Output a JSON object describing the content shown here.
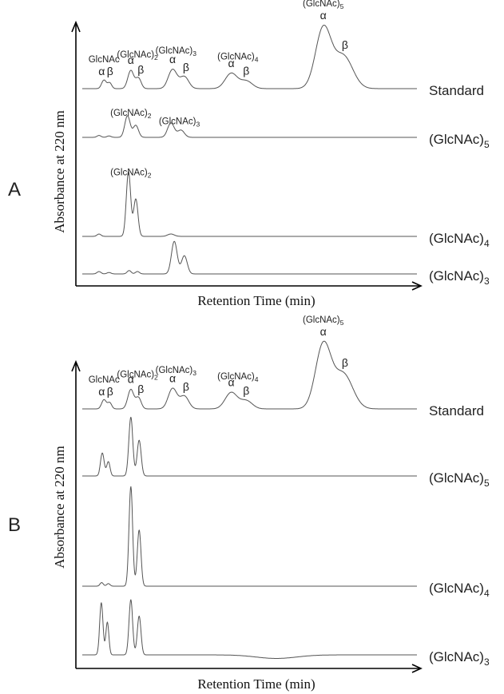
{
  "chart_data": [
    {
      "type": "line",
      "panel_label": "A",
      "xlabel": "Retention Time (min)",
      "ylabel": "Absorbance at 220 nm",
      "x_range": [
        0,
        100
      ],
      "series": [
        {
          "name": "Standard",
          "baseline_offset": 3.0,
          "peaks": [
            {
              "x": 6.5,
              "height": 0.18,
              "width": 0.7
            },
            {
              "x": 8.2,
              "height": 0.12,
              "width": 0.6
            },
            {
              "x": 14.5,
              "height": 0.38,
              "width": 0.9
            },
            {
              "x": 16.8,
              "height": 0.22,
              "width": 0.8
            },
            {
              "x": 27.0,
              "height": 0.4,
              "width": 1.3
            },
            {
              "x": 30.5,
              "height": 0.25,
              "width": 1.3
            },
            {
              "x": 44.5,
              "height": 0.32,
              "width": 1.8
            },
            {
              "x": 49.0,
              "height": 0.16,
              "width": 1.8
            },
            {
              "x": 72.0,
              "height": 1.25,
              "width": 2.3
            },
            {
              "x": 78.0,
              "height": 0.68,
              "width": 2.8
            }
          ]
        },
        {
          "name": "(GlcNAc)5",
          "baseline_offset": 2.05,
          "peaks": [
            {
              "x": 5.0,
              "height": 0.04,
              "width": 0.6
            },
            {
              "x": 8.0,
              "height": 0.03,
              "width": 0.6
            },
            {
              "x": 13.5,
              "height": 0.45,
              "width": 0.8
            },
            {
              "x": 16.0,
              "height": 0.25,
              "width": 0.8
            },
            {
              "x": 26.5,
              "height": 0.3,
              "width": 1.0
            },
            {
              "x": 29.5,
              "height": 0.15,
              "width": 1.0
            }
          ]
        },
        {
          "name": "(GlcNAc)4",
          "baseline_offset": 0.95,
          "peaks": [
            {
              "x": 5.0,
              "height": 0.05,
              "width": 0.6
            },
            {
              "x": 13.8,
              "height": 1.35,
              "width": 0.65
            },
            {
              "x": 16.0,
              "height": 0.78,
              "width": 0.65
            },
            {
              "x": 26.5,
              "height": 0.05,
              "width": 1.0
            }
          ]
        },
        {
          "name": "(GlcNAc)3",
          "baseline_offset": 0.18,
          "peaks": [
            {
              "x": 5.0,
              "height": 0.05,
              "width": 0.6
            },
            {
              "x": 8.0,
              "height": 0.03,
              "width": 0.6
            },
            {
              "x": 14.0,
              "height": 0.07,
              "width": 0.6
            },
            {
              "x": 16.5,
              "height": 0.05,
              "width": 0.6
            },
            {
              "x": 27.5,
              "height": 0.68,
              "width": 0.85
            },
            {
              "x": 30.5,
              "height": 0.38,
              "width": 0.85
            }
          ]
        }
      ],
      "annotations": [
        {
          "text": "GlcNAc",
          "sub": "",
          "series": "Standard",
          "x": 6.5,
          "row": 2
        },
        {
          "text": "α",
          "sub": "",
          "series": "Standard",
          "x": 5.8,
          "row": 1
        },
        {
          "text": "β",
          "sub": "",
          "series": "Standard",
          "x": 8.3,
          "row": 1
        },
        {
          "text": "(GlcNAc)",
          "sub": "2",
          "series": "Standard",
          "x": 16.5,
          "row": 2
        },
        {
          "text": "α",
          "sub": "",
          "series": "Standard",
          "x": 14.5,
          "row": 1
        },
        {
          "text": "β",
          "sub": "",
          "series": "Standard",
          "x": 17.5,
          "row": 0
        },
        {
          "text": "(GlcNAc)",
          "sub": "3",
          "series": "Standard",
          "x": 28.0,
          "row": 2
        },
        {
          "text": "α",
          "sub": "",
          "series": "Standard",
          "x": 27.0,
          "row": 1
        },
        {
          "text": "β",
          "sub": "",
          "series": "Standard",
          "x": 31.0,
          "row": 0
        },
        {
          "text": "(GlcNAc)",
          "sub": "4",
          "series": "Standard",
          "x": 46.5,
          "row": 2
        },
        {
          "text": "α",
          "sub": "",
          "series": "Standard",
          "x": 44.5,
          "row": 1
        },
        {
          "text": "β",
          "sub": "",
          "series": "Standard",
          "x": 49.0,
          "row": 0
        },
        {
          "text": "(GlcNAc)",
          "sub": "5",
          "series": "Standard",
          "x": 72.0,
          "row": 4
        },
        {
          "text": "α",
          "sub": "",
          "series": "Standard",
          "x": 72.0,
          "row": 3
        },
        {
          "text": "β",
          "sub": "",
          "series": "Standard",
          "x": 78.5,
          "row": 2
        },
        {
          "text": "(GlcNAc)",
          "sub": "2",
          "series": "(GlcNAc)5",
          "x": 14.5,
          "row": 1
        },
        {
          "text": "(GlcNAc)",
          "sub": "3",
          "series": "(GlcNAc)5",
          "x": 29.0,
          "row": 0
        },
        {
          "text": "(GlcNAc)",
          "sub": "2",
          "series": "(GlcNAc)4",
          "x": 14.5,
          "row": 3
        }
      ]
    },
    {
      "type": "line",
      "panel_label": "B",
      "xlabel": "Retention Time (min)",
      "ylabel": "Absorbance at 220 nm",
      "x_range": [
        0,
        100
      ],
      "series": [
        {
          "name": "Standard",
          "baseline_offset": 3.0,
          "peaks": [
            {
              "x": 6.5,
              "height": 0.18,
              "width": 0.7
            },
            {
              "x": 8.2,
              "height": 0.12,
              "width": 0.6
            },
            {
              "x": 14.5,
              "height": 0.38,
              "width": 0.9
            },
            {
              "x": 16.8,
              "height": 0.22,
              "width": 0.8
            },
            {
              "x": 27.0,
              "height": 0.4,
              "width": 1.3
            },
            {
              "x": 30.5,
              "height": 0.25,
              "width": 1.3
            },
            {
              "x": 44.5,
              "height": 0.32,
              "width": 1.8
            },
            {
              "x": 49.0,
              "height": 0.16,
              "width": 1.8
            },
            {
              "x": 72.0,
              "height": 1.25,
              "width": 2.3
            },
            {
              "x": 78.0,
              "height": 0.68,
              "width": 2.8
            }
          ]
        },
        {
          "name": "(GlcNAc)5",
          "baseline_offset": 2.05,
          "peaks": [
            {
              "x": 6.0,
              "height": 0.45,
              "width": 0.55
            },
            {
              "x": 7.8,
              "height": 0.28,
              "width": 0.5
            },
            {
              "x": 14.5,
              "height": 1.15,
              "width": 0.6
            },
            {
              "x": 17.0,
              "height": 0.7,
              "width": 0.6
            }
          ]
        },
        {
          "name": "(GlcNAc)4",
          "baseline_offset": 0.95,
          "peaks": [
            {
              "x": 5.8,
              "height": 0.07,
              "width": 0.5
            },
            {
              "x": 7.8,
              "height": 0.05,
              "width": 0.5
            },
            {
              "x": 14.5,
              "height": 1.95,
              "width": 0.55
            },
            {
              "x": 17.0,
              "height": 1.1,
              "width": 0.55
            }
          ]
        },
        {
          "name": "(GlcNAc)3",
          "baseline_offset": 0.18,
          "dip": {
            "x": 58.0,
            "depth": -0.07,
            "width": 6.0
          },
          "peaks": [
            {
              "x": 5.7,
              "height": 1.02,
              "width": 0.5
            },
            {
              "x": 7.5,
              "height": 0.64,
              "width": 0.45
            },
            {
              "x": 14.5,
              "height": 1.08,
              "width": 0.55
            },
            {
              "x": 17.0,
              "height": 0.76,
              "width": 0.55
            }
          ]
        }
      ],
      "annotations": [
        {
          "text": "GlcNAc",
          "sub": "",
          "series": "Standard",
          "x": 6.5,
          "row": 2
        },
        {
          "text": "α",
          "sub": "",
          "series": "Standard",
          "x": 5.8,
          "row": 1
        },
        {
          "text": "β",
          "sub": "",
          "series": "Standard",
          "x": 8.3,
          "row": 1
        },
        {
          "text": "(GlcNAc)",
          "sub": "2",
          "series": "Standard",
          "x": 16.5,
          "row": 2
        },
        {
          "text": "α",
          "sub": "",
          "series": "Standard",
          "x": 14.5,
          "row": 1
        },
        {
          "text": "β",
          "sub": "",
          "series": "Standard",
          "x": 17.5,
          "row": 0
        },
        {
          "text": "(GlcNAc)",
          "sub": "3",
          "series": "Standard",
          "x": 28.0,
          "row": 2
        },
        {
          "text": "α",
          "sub": "",
          "series": "Standard",
          "x": 27.0,
          "row": 1
        },
        {
          "text": "β",
          "sub": "",
          "series": "Standard",
          "x": 31.0,
          "row": 0
        },
        {
          "text": "(GlcNAc)",
          "sub": "4",
          "series": "Standard",
          "x": 46.5,
          "row": 2
        },
        {
          "text": "α",
          "sub": "",
          "series": "Standard",
          "x": 44.5,
          "row": 1
        },
        {
          "text": "β",
          "sub": "",
          "series": "Standard",
          "x": 49.0,
          "row": 0
        },
        {
          "text": "(GlcNAc)",
          "sub": "5",
          "series": "Standard",
          "x": 72.0,
          "row": 4
        },
        {
          "text": "α",
          "sub": "",
          "series": "Standard",
          "x": 72.0,
          "row": 3
        },
        {
          "text": "β",
          "sub": "",
          "series": "Standard",
          "x": 78.5,
          "row": 2
        }
      ]
    }
  ]
}
